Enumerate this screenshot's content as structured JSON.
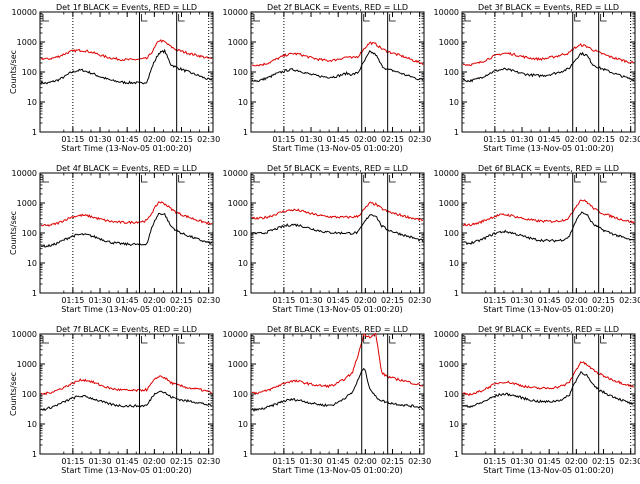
{
  "chart_data": [
    {
      "type": "line",
      "title": "Det 1f BLACK = Events, RED = LLD",
      "xlabel": "Start Time (13-Nov-05 01:00:20)",
      "ylabel": "Counts/sec",
      "x_ticks": [
        "01:15",
        "01:30",
        "01:45",
        "02:00",
        "02:15",
        "02:30"
      ],
      "y_ticks": [
        "1",
        "10",
        "100",
        "1000",
        "10000"
      ],
      "yscale": "log",
      "ylim": [
        1,
        10000
      ],
      "series": [
        {
          "color": "#000000",
          "values": [
            45,
            42,
            48,
            55,
            70,
            95,
            110,
            115,
            100,
            85,
            70,
            60,
            52,
            48,
            45,
            44,
            44,
            42,
            48,
            180,
            430,
            500,
            180,
            140,
            120,
            100,
            85,
            72,
            60,
            52
          ]
        },
        {
          "color": "#dd0000",
          "values": [
            280,
            270,
            290,
            330,
            400,
            480,
            520,
            530,
            490,
            430,
            370,
            320,
            290,
            270,
            260,
            255,
            260,
            270,
            280,
            520,
            1150,
            1000,
            700,
            550,
            480,
            420,
            380,
            340,
            300,
            270
          ]
        }
      ],
      "vlines": [
        {
          "x": 0.19,
          "style": "dotted"
        },
        {
          "x": 0.575,
          "style": "solid"
        },
        {
          "x": 0.79,
          "style": "solid"
        },
        {
          "x": 0.975,
          "style": "dotted"
        }
      ]
    },
    {
      "type": "line",
      "title": "Det 2f BLACK = Events, RED = LLD",
      "xlabel": "Start Time (13-Nov-05 01:00:20)",
      "ylabel": "",
      "x_ticks": [
        "01:15",
        "01:30",
        "01:45",
        "02:00",
        "02:15",
        "02:30"
      ],
      "y_ticks": [
        "1",
        "10",
        "100",
        "1000",
        "10000"
      ],
      "yscale": "log",
      "ylim": [
        1,
        10000
      ],
      "series": [
        {
          "color": "#000000",
          "values": [
            55,
            50,
            58,
            68,
            85,
            100,
            115,
            120,
            110,
            95,
            82,
            75,
            70,
            68,
            70,
            78,
            90,
            82,
            95,
            220,
            480,
            380,
            160,
            120,
            110,
            95,
            80,
            70,
            60,
            55
          ]
        },
        {
          "color": "#dd0000",
          "values": [
            175,
            170,
            180,
            210,
            260,
            320,
            380,
            410,
            390,
            340,
            300,
            270,
            250,
            240,
            250,
            280,
            320,
            290,
            330,
            600,
            950,
            850,
            600,
            480,
            420,
            360,
            310,
            260,
            220,
            190
          ]
        }
      ],
      "vlines": [
        {
          "x": 0.19,
          "style": "dotted"
        },
        {
          "x": 0.64,
          "style": "solid"
        },
        {
          "x": 0.79,
          "style": "solid"
        },
        {
          "x": 0.975,
          "style": "dotted"
        }
      ]
    },
    {
      "type": "line",
      "title": "Det 3f BLACK = Events, RED = LLD",
      "xlabel": "Start Time (13-Nov-05 01:00:20)",
      "ylabel": "",
      "x_ticks": [
        "01:15",
        "01:30",
        "01:45",
        "02:00",
        "02:15",
        "02:30"
      ],
      "y_ticks": [
        "1",
        "10",
        "100",
        "1000",
        "10000"
      ],
      "yscale": "log",
      "ylim": [
        1,
        10000
      ],
      "series": [
        {
          "color": "#000000",
          "values": [
            55,
            50,
            55,
            65,
            80,
            100,
            115,
            125,
            115,
            100,
            90,
            82,
            78,
            75,
            78,
            85,
            95,
            110,
            130,
            250,
            420,
            360,
            180,
            140,
            120,
            100,
            85,
            72,
            62,
            55
          ]
        },
        {
          "color": "#dd0000",
          "values": [
            180,
            175,
            185,
            210,
            260,
            320,
            380,
            420,
            410,
            370,
            330,
            300,
            280,
            270,
            280,
            310,
            340,
            390,
            430,
            650,
            800,
            720,
            550,
            450,
            380,
            320,
            280,
            250,
            220,
            200
          ]
        }
      ],
      "vlines": [
        {
          "x": 0.19,
          "style": "dotted"
        },
        {
          "x": 0.64,
          "style": "solid"
        },
        {
          "x": 0.79,
          "style": "solid"
        },
        {
          "x": 0.975,
          "style": "dotted"
        }
      ]
    },
    {
      "type": "line",
      "title": "Det 4f BLACK = Events, RED = LLD",
      "xlabel": "Start Time (13-Nov-05 01:00:20)",
      "ylabel": "Counts/sec",
      "x_ticks": [
        "01:15",
        "01:30",
        "01:45",
        "02:00",
        "02:15",
        "02:30"
      ],
      "y_ticks": [
        "1",
        "10",
        "100",
        "1000",
        "10000"
      ],
      "yscale": "log",
      "ylim": [
        1,
        10000
      ],
      "series": [
        {
          "color": "#000000",
          "values": [
            38,
            36,
            40,
            48,
            60,
            75,
            85,
            90,
            85,
            75,
            65,
            55,
            48,
            45,
            43,
            42,
            42,
            40,
            45,
            200,
            450,
            420,
            170,
            120,
            95,
            80,
            68,
            58,
            50,
            45
          ]
        },
        {
          "color": "#dd0000",
          "values": [
            180,
            175,
            190,
            220,
            270,
            330,
            370,
            390,
            370,
            330,
            290,
            260,
            240,
            230,
            225,
            225,
            230,
            240,
            260,
            550,
            1100,
            950,
            650,
            480,
            400,
            340,
            290,
            250,
            220,
            190
          ]
        }
      ],
      "vlines": [
        {
          "x": 0.19,
          "style": "dotted"
        },
        {
          "x": 0.575,
          "style": "solid"
        },
        {
          "x": 0.79,
          "style": "solid"
        },
        {
          "x": 0.975,
          "style": "dotted"
        }
      ]
    },
    {
      "type": "line",
      "title": "Det 5f BLACK = Events, RED = LLD",
      "xlabel": "Start Time (13-Nov-05 01:00:20)",
      "ylabel": "",
      "x_ticks": [
        "01:15",
        "01:30",
        "01:45",
        "02:00",
        "02:15",
        "02:30"
      ],
      "y_ticks": [
        "1",
        "10",
        "100",
        "1000",
        "10000"
      ],
      "yscale": "log",
      "ylim": [
        1,
        10000
      ],
      "series": [
        {
          "color": "#000000",
          "values": [
            100,
            95,
            100,
            115,
            135,
            160,
            180,
            190,
            180,
            160,
            140,
            125,
            112,
            105,
            102,
            100,
            100,
            98,
            105,
            220,
            420,
            380,
            170,
            130,
            110,
            95,
            82,
            72,
            62,
            55
          ]
        },
        {
          "color": "#dd0000",
          "values": [
            310,
            300,
            320,
            360,
            420,
            500,
            560,
            590,
            560,
            500,
            440,
            400,
            370,
            350,
            340,
            335,
            335,
            340,
            360,
            600,
            1000,
            900,
            650,
            520,
            450,
            400,
            360,
            320,
            290,
            270
          ]
        }
      ],
      "vlines": [
        {
          "x": 0.19,
          "style": "dotted"
        },
        {
          "x": 0.64,
          "style": "solid"
        },
        {
          "x": 0.79,
          "style": "solid"
        },
        {
          "x": 0.975,
          "style": "dotted"
        }
      ]
    },
    {
      "type": "line",
      "title": "Det 6f BLACK = Events, RED = LLD",
      "xlabel": "Start Time (13-Nov-05 01:00:20)",
      "ylabel": "",
      "x_ticks": [
        "01:15",
        "01:30",
        "01:45",
        "02:00",
        "02:15",
        "02:30"
      ],
      "y_ticks": [
        "1",
        "10",
        "100",
        "1000",
        "10000"
      ],
      "yscale": "log",
      "ylim": [
        1,
        10000
      ],
      "series": [
        {
          "color": "#000000",
          "values": [
            48,
            45,
            50,
            58,
            72,
            90,
            105,
            112,
            105,
            92,
            80,
            70,
            62,
            58,
            56,
            55,
            56,
            60,
            75,
            220,
            480,
            420,
            200,
            150,
            120,
            100,
            85,
            72,
            62,
            55
          ]
        },
        {
          "color": "#dd0000",
          "values": [
            190,
            185,
            200,
            230,
            280,
            340,
            390,
            410,
            390,
            350,
            310,
            280,
            260,
            250,
            245,
            245,
            250,
            270,
            320,
            700,
            1300,
            1100,
            700,
            520,
            430,
            370,
            320,
            280,
            250,
            220
          ]
        }
      ],
      "vlines": [
        {
          "x": 0.19,
          "style": "dotted"
        },
        {
          "x": 0.64,
          "style": "solid"
        },
        {
          "x": 0.79,
          "style": "solid"
        },
        {
          "x": 0.975,
          "style": "dotted"
        }
      ]
    },
    {
      "type": "line",
      "title": "Det 7f BLACK = Events, RED = LLD",
      "xlabel": "Start Time (13-Nov-05 01:00:20)",
      "ylabel": "Counts/sec",
      "x_ticks": [
        "01:15",
        "01:30",
        "01:45",
        "02:00",
        "02:15",
        "02:30"
      ],
      "y_ticks": [
        "1",
        "10",
        "100",
        "1000",
        "10000"
      ],
      "yscale": "log",
      "ylim": [
        1,
        10000
      ],
      "series": [
        {
          "color": "#000000",
          "values": [
            30,
            32,
            38,
            45,
            55,
            68,
            80,
            85,
            78,
            68,
            58,
            50,
            45,
            42,
            40,
            40,
            40,
            40,
            42,
            90,
            130,
            110,
            80,
            70,
            62,
            58,
            55,
            50,
            45,
            40
          ]
        },
        {
          "color": "#dd0000",
          "values": [
            100,
            105,
            120,
            140,
            170,
            210,
            260,
            300,
            280,
            240,
            200,
            170,
            150,
            140,
            135,
            130,
            130,
            135,
            140,
            260,
            400,
            350,
            240,
            200,
            180,
            160,
            150,
            140,
            125,
            110
          ]
        }
      ],
      "vlines": [
        {
          "x": 0.19,
          "style": "dotted"
        },
        {
          "x": 0.575,
          "style": "solid"
        },
        {
          "x": 0.79,
          "style": "solid"
        },
        {
          "x": 0.975,
          "style": "dotted"
        }
      ]
    },
    {
      "type": "line",
      "title": "Det 8f BLACK = Events, RED = LLD",
      "xlabel": "Start Time (13-Nov-05 01:00:20)",
      "ylabel": "",
      "x_ticks": [
        "01:15",
        "01:30",
        "01:45",
        "02:00",
        "02:15",
        "02:30"
      ],
      "y_ticks": [
        "1",
        "10",
        "100",
        "1000",
        "10000"
      ],
      "yscale": "log",
      "ylim": [
        1,
        10000
      ],
      "series": [
        {
          "color": "#000000",
          "values": [
            30,
            30,
            33,
            38,
            45,
            55,
            62,
            66,
            62,
            56,
            50,
            46,
            43,
            42,
            45,
            60,
            80,
            110,
            300,
            800,
            150,
            80,
            60,
            52,
            48,
            45,
            42,
            40,
            38,
            35
          ]
        },
        {
          "color": "#dd0000",
          "values": [
            110,
            110,
            120,
            140,
            170,
            210,
            250,
            270,
            260,
            235,
            210,
            195,
            185,
            185,
            200,
            260,
            350,
            500,
            2000,
            10000,
            8000,
            10000,
            500,
            380,
            330,
            300,
            270,
            240,
            210,
            190
          ]
        }
      ],
      "vlines": [
        {
          "x": 0.19,
          "style": "dotted"
        },
        {
          "x": 0.64,
          "style": "solid"
        },
        {
          "x": 0.79,
          "style": "solid"
        },
        {
          "x": 0.975,
          "style": "dotted"
        }
      ]
    },
    {
      "type": "line",
      "title": "Det 9f BLACK = Events, RED = LLD",
      "xlabel": "Start Time (13-Nov-05 01:00:20)",
      "ylabel": "",
      "x_ticks": [
        "01:15",
        "01:30",
        "01:45",
        "02:00",
        "02:15",
        "02:30"
      ],
      "y_ticks": [
        "1",
        "10",
        "100",
        "1000",
        "10000"
      ],
      "yscale": "log",
      "ylim": [
        1,
        10000
      ],
      "series": [
        {
          "color": "#000000",
          "values": [
            40,
            38,
            42,
            50,
            62,
            78,
            92,
            100,
            95,
            85,
            75,
            66,
            60,
            56,
            55,
            56,
            60,
            68,
            90,
            250,
            550,
            420,
            200,
            140,
            110,
            90,
            75,
            62,
            52,
            45
          ]
        },
        {
          "color": "#dd0000",
          "values": [
            100,
            98,
            105,
            125,
            155,
            195,
            235,
            255,
            240,
            215,
            190,
            170,
            160,
            155,
            155,
            160,
            170,
            190,
            240,
            550,
            1200,
            950,
            650,
            480,
            390,
            320,
            270,
            230,
            200,
            170
          ]
        }
      ],
      "vlines": [
        {
          "x": 0.19,
          "style": "dotted"
        },
        {
          "x": 0.64,
          "style": "solid"
        },
        {
          "x": 0.79,
          "style": "solid"
        },
        {
          "x": 0.975,
          "style": "dotted"
        }
      ]
    }
  ]
}
